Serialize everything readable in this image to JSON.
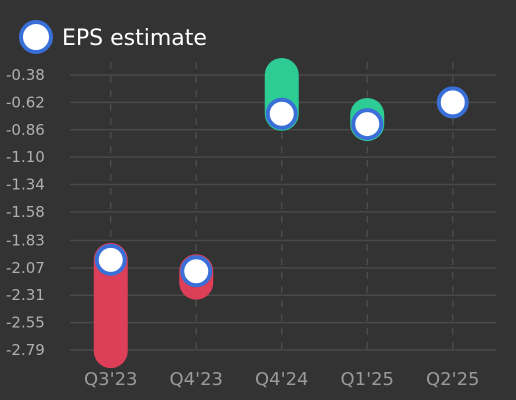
{
  "chart_data": {
    "type": "range-dot",
    "title": "",
    "xlabel": "",
    "ylabel": "",
    "legend": {
      "label": "EPS estimate",
      "placement": "top-left"
    },
    "categories": [
      "Q3'23",
      "Q4'23",
      "Q4'24",
      "Q1'25",
      "Q2'25"
    ],
    "y_ticks": [
      "-0.38",
      "-0.62",
      "-0.86",
      "-1.10",
      "-1.34",
      "-1.58",
      "-1.83",
      "-2.07",
      "-2.31",
      "-2.55",
      "-2.79"
    ],
    "y_range": [
      -2.79,
      -0.38
    ],
    "grid": true,
    "series": [
      {
        "name": "EPS estimate",
        "values": [
          -2.0,
          -2.1,
          -0.72,
          -0.81,
          -0.62
        ]
      }
    ],
    "actuals": [
      -2.8,
      -2.2,
      -0.38,
      -0.73,
      -0.62
    ]
  },
  "colors": {
    "background": "#333333",
    "grid": "#4a4a4a",
    "beat": "#2ecc95",
    "miss": "#dc3f57",
    "dot_fill": "#ffffff",
    "dot_stroke": "#3a6fd8"
  }
}
